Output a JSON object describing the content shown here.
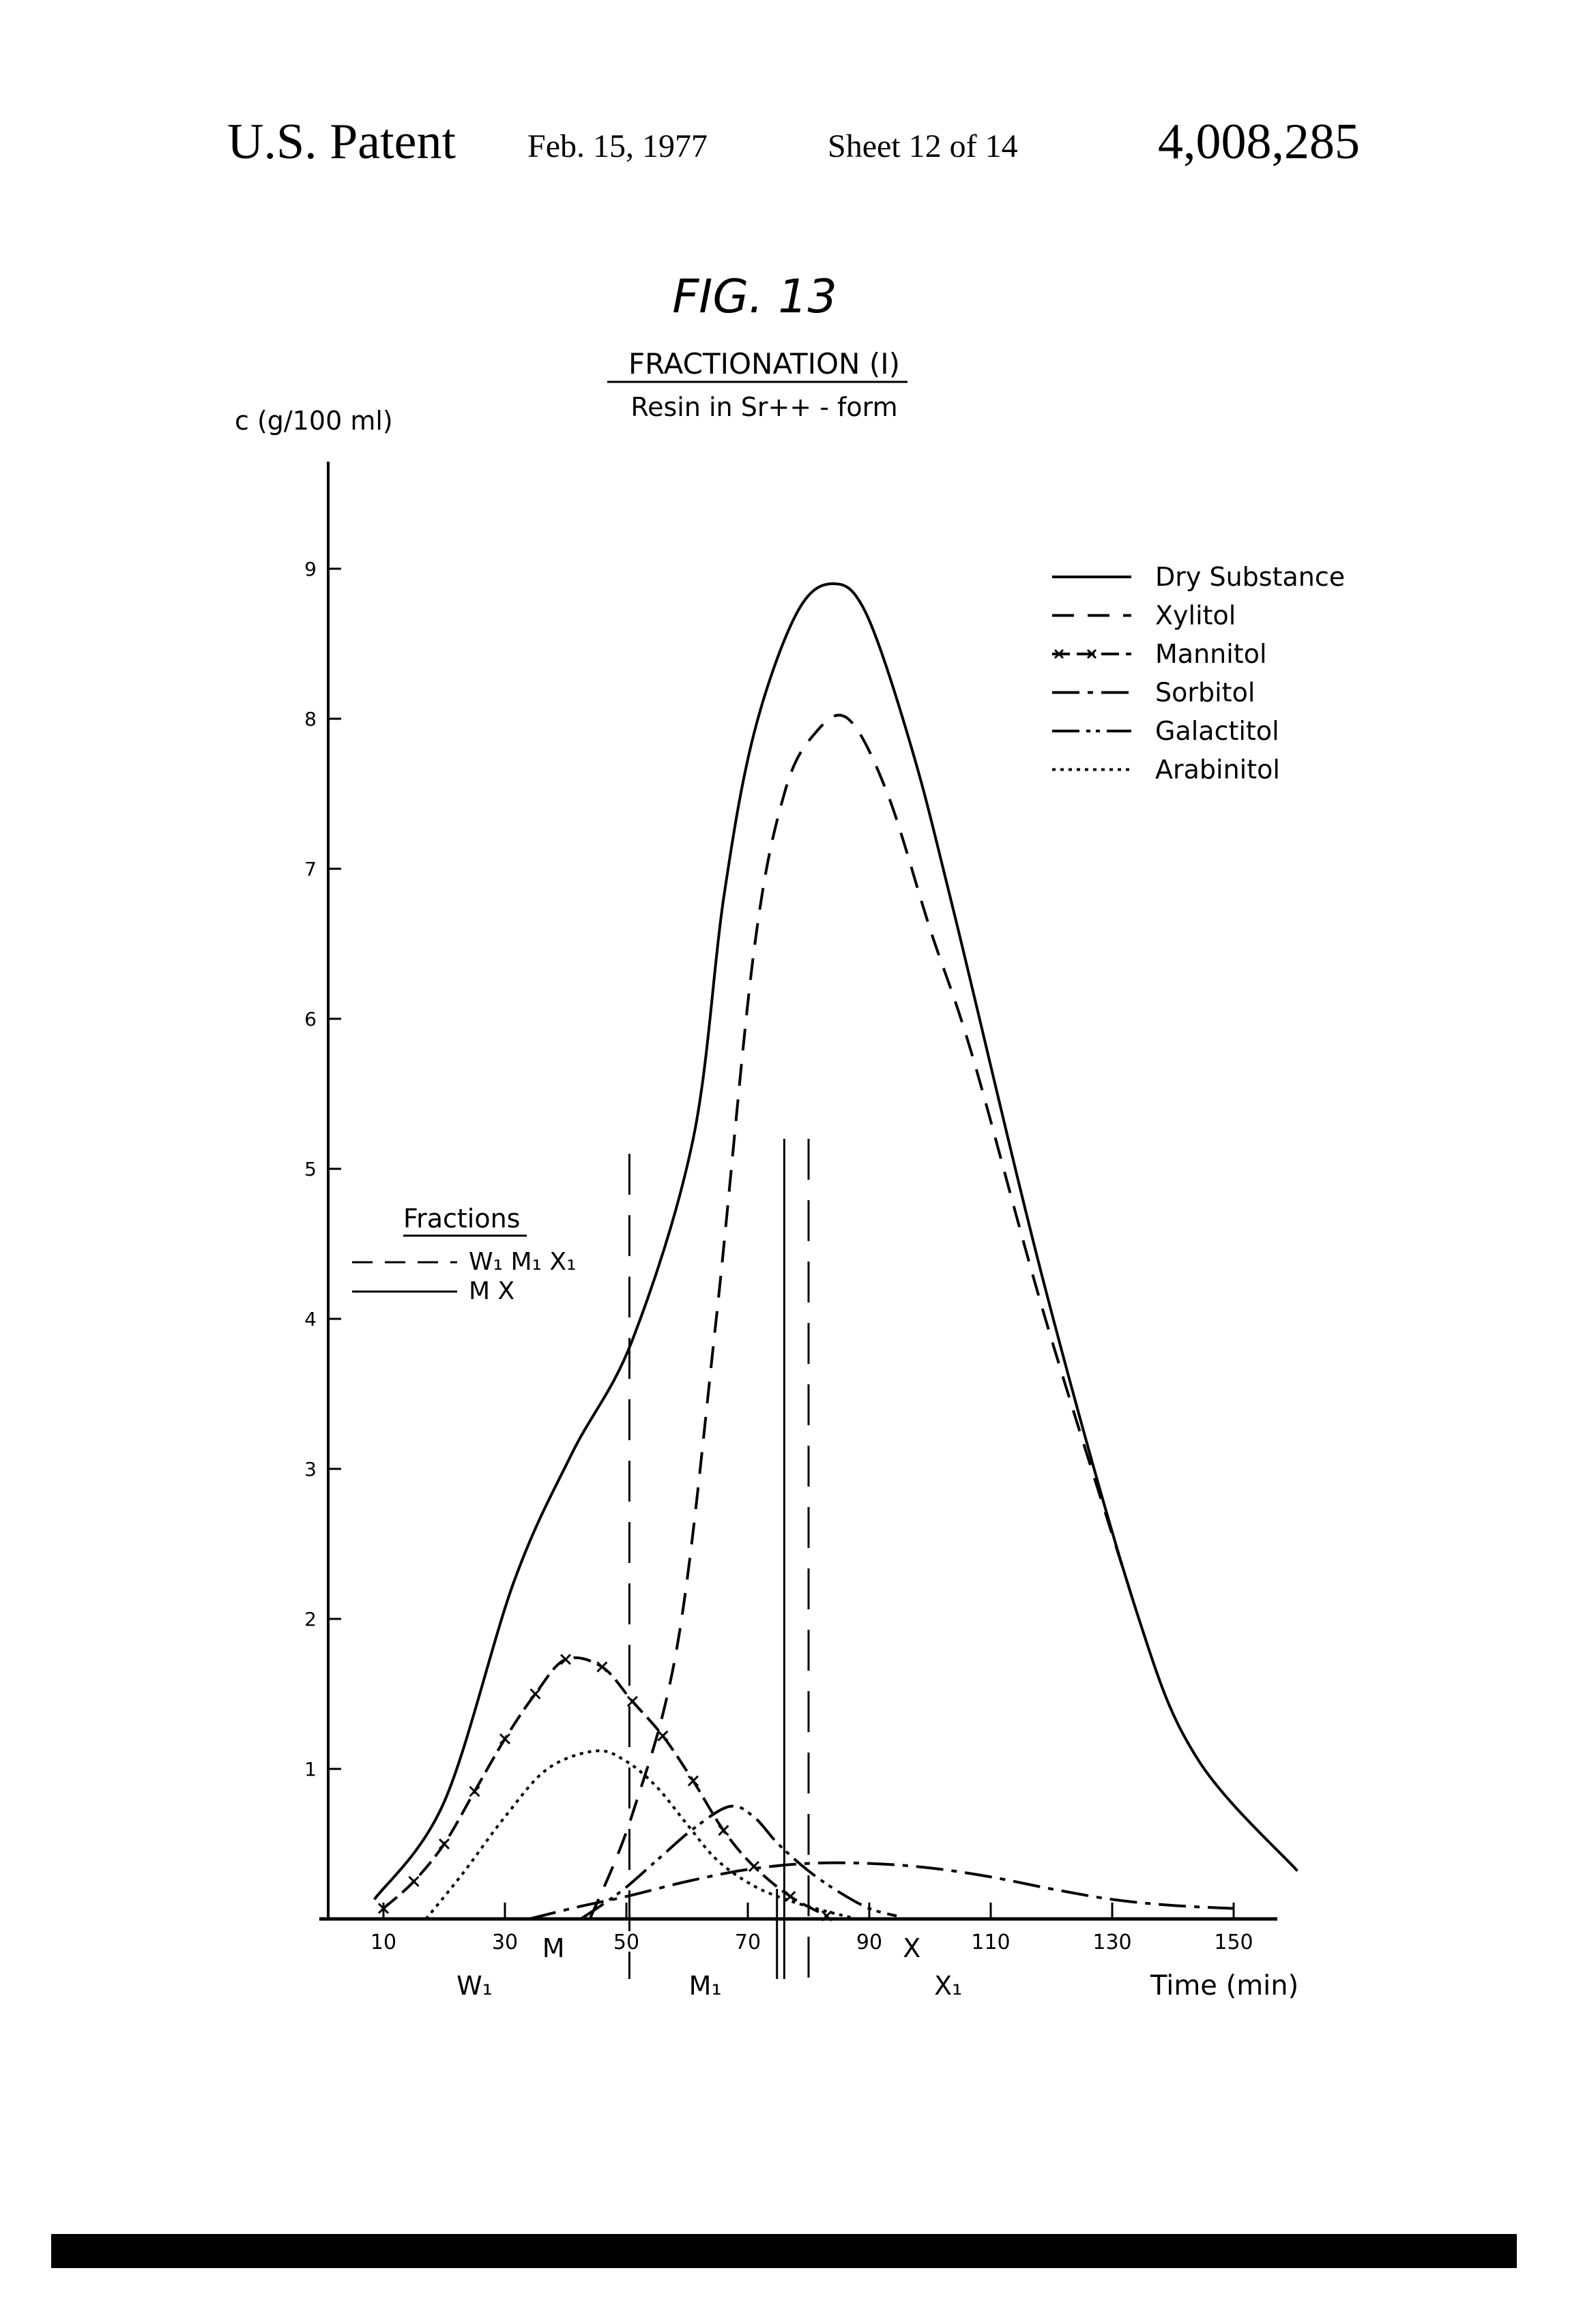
{
  "header": {
    "patent": "U.S. Patent",
    "date": "Feb. 15, 1977",
    "sheet": "Sheet 12 of 14",
    "number": "4,008,285"
  },
  "chart_data": {
    "type": "line",
    "figure_label": "FIG. 13",
    "title": "FRACTIONATION (I)",
    "subtitle": "Resin in Sr++ - form",
    "xlabel": "Time (min)",
    "ylabel": "c (g/100 ml)",
    "xlim": [
      0,
      165
    ],
    "ylim": [
      0,
      9.8
    ],
    "x_ticks": [
      10,
      30,
      50,
      70,
      90,
      110,
      130,
      150
    ],
    "y_ticks": [
      1,
      2,
      3,
      4,
      5,
      6,
      7,
      8,
      9
    ],
    "grid": false,
    "legend_position": "top-right",
    "series": [
      {
        "name": "Dry Substance",
        "style": "solid",
        "x": [
          8.5,
          20,
          31.5,
          41,
          51,
          61,
          66,
          71,
          78,
          84,
          89.5,
          97,
          104,
          119,
          134,
          144,
          160.5
        ],
        "y": [
          0.13,
          0.78,
          2.25,
          3.1,
          3.86,
          5.2,
          6.8,
          7.9,
          8.7,
          8.9,
          8.7,
          7.8,
          6.7,
          4.2,
          2.05,
          1.07,
          0.32
        ]
      },
      {
        "name": "Xylitol",
        "style": "dashed",
        "x": [
          44,
          51,
          58.5,
          64.8,
          71,
          76,
          81,
          86.5,
          93,
          100,
          107,
          119,
          134
        ],
        "y": [
          0,
          0.7,
          1.85,
          4.0,
          6.45,
          7.5,
          7.9,
          8.0,
          7.5,
          6.6,
          5.75,
          4.0,
          2.05
        ]
      },
      {
        "name": "Mannitol",
        "style": "x-marked",
        "x": [
          10,
          15,
          20,
          25,
          30,
          35,
          40,
          46,
          51,
          56,
          61,
          66,
          71,
          77,
          83
        ],
        "y": [
          0.07,
          0.25,
          0.5,
          0.85,
          1.2,
          1.5,
          1.73,
          1.68,
          1.45,
          1.22,
          0.92,
          0.59,
          0.35,
          0.15,
          0.02
        ]
      },
      {
        "name": "Sorbitol",
        "style": "dash-dot",
        "x": [
          34,
          42,
          50,
          60,
          70,
          80,
          90,
          100,
          110,
          120,
          130,
          140,
          150
        ],
        "y": [
          0,
          0.08,
          0.15,
          0.25,
          0.33,
          0.37,
          0.37,
          0.34,
          0.28,
          0.2,
          0.13,
          0.09,
          0.07
        ]
      },
      {
        "name": "Galactitol",
        "style": "dash-dot-dot",
        "x": [
          42.5,
          49,
          55,
          61,
          67,
          71,
          75,
          80,
          85,
          90,
          94.5
        ],
        "y": [
          0,
          0.18,
          0.39,
          0.6,
          0.75,
          0.68,
          0.5,
          0.32,
          0.18,
          0.07,
          0.02
        ]
      },
      {
        "name": "Arabinitol",
        "style": "dotted",
        "x": [
          17,
          23,
          30,
          37,
          45,
          50,
          55,
          60,
          65,
          71,
          77,
          83,
          88
        ],
        "y": [
          0,
          0.3,
          0.68,
          1.0,
          1.12,
          1.05,
          0.88,
          0.63,
          0.39,
          0.22,
          0.12,
          0.05,
          0
        ]
      }
    ],
    "fractions_legend": {
      "title": "Fractions",
      "dashed_label": "W₁ M₁ X₁",
      "solid_label": "M X"
    },
    "fraction_cuts": [
      {
        "style": "dashed",
        "x": 50.5,
        "y_top": 5.1
      },
      {
        "style": "solid",
        "x": 76,
        "y_top": 5.2
      },
      {
        "style": "solid",
        "x": 74.8,
        "y_top": 0.2
      },
      {
        "style": "dashed",
        "x": 80,
        "y_top": 5.2
      }
    ],
    "fraction_labels": [
      {
        "text": "M",
        "x": 38,
        "row": 1
      },
      {
        "text": "X",
        "x": 97,
        "row": 1
      },
      {
        "text": "W₁",
        "x": 25,
        "row": 2
      },
      {
        "text": "M₁",
        "x": 63,
        "row": 2
      },
      {
        "text": "X₁",
        "x": 103,
        "row": 2
      }
    ]
  }
}
